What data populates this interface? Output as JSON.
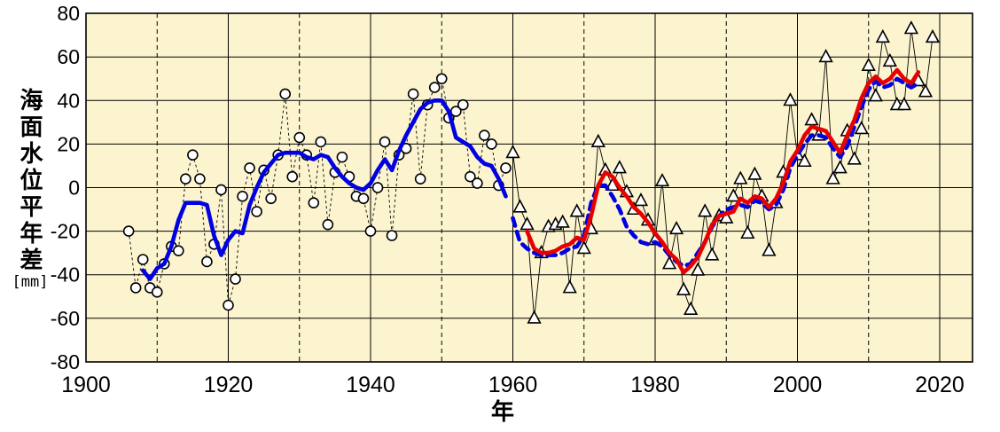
{
  "chart_data": {
    "type": "line",
    "title": "",
    "axes": {
      "y_title": "海面水位平年差",
      "y_unit": "[mm]",
      "x_title": "年",
      "ylim": [
        -80,
        80
      ],
      "xlim": [
        1900,
        2024
      ],
      "y_ticks": [
        "80",
        "60",
        "40",
        "20",
        "0",
        "-20",
        "-40",
        "-60",
        "-80"
      ],
      "x_ticks": [
        "1900",
        "1920",
        "1940",
        "1960",
        "1980",
        "2000",
        "2020"
      ],
      "grid": {
        "y_step": 20,
        "x_major_step": 20,
        "x_minor_step": 10,
        "minor_style": "dashed"
      }
    },
    "colors": {
      "plot_background": "#FCF4CE",
      "grid": "#000000",
      "marker_fill": "#FFFFFF",
      "marker_stroke": "#000000",
      "blue_line": "#0000E0",
      "red_line": "#E80000"
    },
    "legend": "none",
    "series": [
      {
        "id": "annual-circles",
        "description": "annual mean sea level anomaly 1906-1959 (circle markers, thin dashed connector)",
        "kind": "scatter",
        "marker": "circle",
        "connector": "thin-dashed-black",
        "start_year": 1906,
        "values": [
          -20,
          -46,
          -33,
          -46,
          -48,
          -35,
          -27,
          -29,
          4,
          15,
          4,
          -34,
          -26,
          -1,
          -54,
          -42,
          -4,
          9,
          -11,
          8,
          -5,
          15,
          43,
          5,
          23,
          15,
          -7,
          21,
          -17,
          7,
          14,
          5,
          -4,
          -5,
          -20,
          0,
          21,
          -22,
          15,
          18,
          43,
          4,
          38,
          46,
          50,
          32,
          35,
          38,
          5,
          2,
          24,
          20,
          1,
          9
        ]
      },
      {
        "id": "annual-triangles",
        "description": "annual mean sea level anomaly 1960-2019 (triangle markers, thin solid connector)",
        "kind": "scatter",
        "marker": "triangle",
        "connector": "thin-solid-black",
        "start_year": 1960,
        "values": [
          16,
          -9,
          -17,
          -60,
          -30,
          -18,
          -17,
          -16,
          -46,
          -11,
          -28,
          -19,
          21,
          8,
          1,
          9,
          -2,
          -10,
          -6,
          -15,
          -24,
          3,
          -35,
          -19,
          -47,
          -56,
          -38,
          -11,
          -31,
          -13,
          -14,
          -4,
          4,
          -21,
          6,
          -4,
          -29,
          -7,
          7,
          40,
          15,
          12,
          31,
          24,
          60,
          4,
          9,
          26,
          13,
          27,
          56,
          42,
          69,
          58,
          38,
          38,
          73,
          49,
          44,
          69
        ]
      },
      {
        "id": "smoothed-blue-solid",
        "description": "5-year running mean 1908-1959 (thick blue solid line)",
        "kind": "line",
        "color_key": "blue_line",
        "dash": false,
        "start_year": 1908,
        "values": [
          -38,
          -42,
          -37,
          -35,
          -27,
          -15,
          -7,
          -7,
          -7,
          -8,
          -22,
          -31,
          -24,
          -20,
          -21,
          -8,
          0,
          7,
          11,
          15,
          16,
          16,
          16,
          14,
          13,
          15,
          14,
          9,
          5,
          2,
          0,
          -1,
          2,
          8,
          13,
          8,
          17,
          24,
          30,
          36,
          39,
          40,
          40,
          35,
          23,
          21,
          19,
          14,
          11,
          10,
          4,
          -4
        ]
      },
      {
        "id": "smoothed-blue-dashed",
        "description": "5-year running mean of former station network 1960-2017 (thick blue dashed line)",
        "kind": "line",
        "color_key": "blue_line",
        "dash": true,
        "start_year": 1960,
        "values": [
          -14,
          -25,
          -28,
          -30,
          -31,
          -31,
          -31,
          -30,
          -28,
          -27,
          -22,
          -7,
          1,
          1,
          -4,
          -10,
          -18,
          -22,
          -25,
          -26,
          -25,
          -27,
          -31,
          -34,
          -36,
          -35,
          -30,
          -25,
          -18,
          -13,
          -10,
          -9,
          -8,
          -9,
          -6,
          -7,
          -10,
          -8,
          -1,
          9,
          15,
          20,
          24,
          24,
          23,
          18,
          14,
          19,
          28,
          37,
          45,
          49,
          46,
          47,
          50,
          48,
          46,
          48
        ]
      },
      {
        "id": "smoothed-red-solid",
        "description": "5-year running mean 1962-2017 (thick red solid line)",
        "kind": "line",
        "color_key": "red_line",
        "dash": false,
        "start_year": 1962,
        "values": [
          -20,
          -28,
          -30,
          -30,
          -29,
          -27,
          -26,
          -23,
          -24,
          -13,
          1,
          7,
          5,
          0,
          -4,
          -9,
          -12,
          -16,
          -21,
          -25,
          -30,
          -33,
          -39,
          -36,
          -32,
          -25,
          -17,
          -13,
          -12,
          -11,
          -5,
          -7,
          -4,
          -5,
          -9,
          -5,
          2,
          12,
          17,
          24,
          28,
          27,
          26,
          21,
          16,
          24,
          31,
          41,
          48,
          51,
          48,
          50,
          54,
          50,
          48,
          53
        ]
      }
    ]
  }
}
